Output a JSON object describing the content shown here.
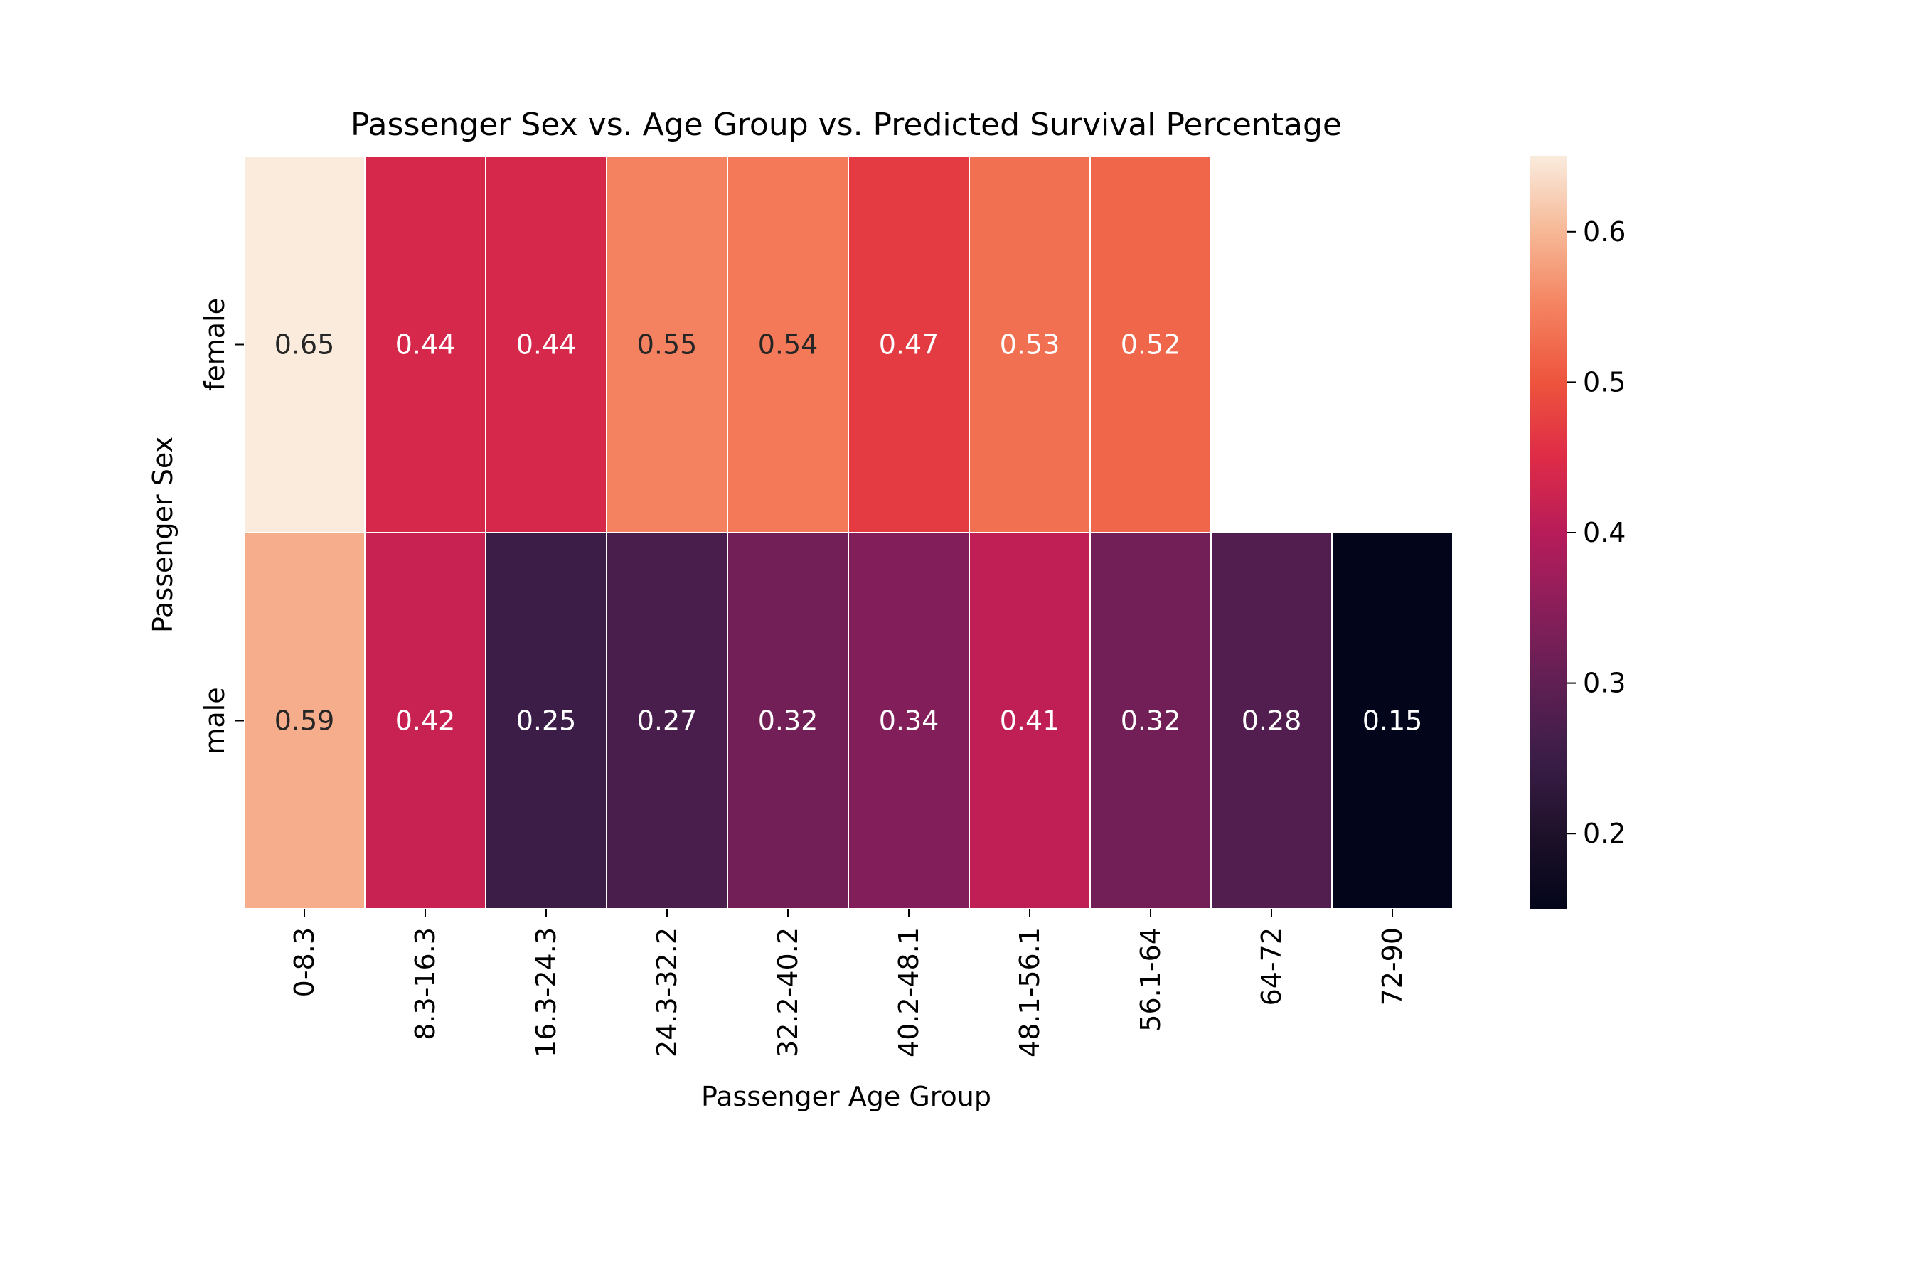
{
  "chart_data": {
    "type": "heatmap",
    "title": "Passenger Sex vs. Age Group vs. Predicted Survival Percentage",
    "xlabel": "Passenger Age Group",
    "ylabel": "Passenger Sex",
    "x_categories": [
      "0-8.3",
      "8.3-16.3",
      "16.3-24.3",
      "24.3-32.2",
      "32.2-40.2",
      "40.2-48.1",
      "48.1-56.1",
      "56.1-64",
      "64-72",
      "72-90"
    ],
    "y_categories": [
      "female",
      "male"
    ],
    "values": [
      [
        0.65,
        0.44,
        0.44,
        0.55,
        0.54,
        0.47,
        0.53,
        0.52,
        null,
        null
      ],
      [
        0.59,
        0.42,
        0.25,
        0.27,
        0.32,
        0.34,
        0.41,
        0.32,
        0.28,
        0.15
      ]
    ],
    "colorbar": {
      "vmin": 0.15,
      "vmax": 0.65,
      "ticks": [
        "0.2",
        "0.3",
        "0.4",
        "0.5",
        "0.6"
      ],
      "colormap": "rocket"
    }
  }
}
